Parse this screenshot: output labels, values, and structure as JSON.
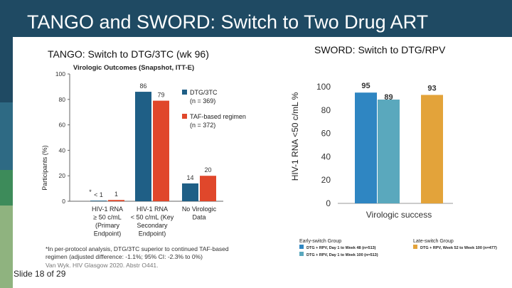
{
  "slide": {
    "title": "TANGO and SWORD: Switch to Two Drug ART",
    "slide_number": "Slide 18 of 29"
  },
  "tango": {
    "panel_title": "TANGO: Switch to DTG/3TC (wk 96)",
    "footnote_line1": "*In per-protocol analysis, DTG/3TC superior to continued TAF-based",
    "footnote_line2": "regimen (adjusted difference: -1.1%; 95% CI: -2.3% to 0%)",
    "citation": "Van Wyk. HIV Glasgow 2020. Abstr O441."
  },
  "sword": {
    "panel_title": "SWORD: Switch to DTG/RPV",
    "legend_group_early": "Early-switch Group",
    "legend_group_late": "Late-switch Group"
  },
  "colors": {
    "title_bar": "#1f4a63",
    "dtg_3tc": "#1f5f86",
    "taf": "#e0472b",
    "sword_early_day1_wk48": "#2f86c2",
    "sword_early_day1_wk100": "#5aa8bd",
    "sword_late": "#e3a33a"
  },
  "chart_data": [
    {
      "type": "bar",
      "title": "Virologic Outcomes (Snapshot, ITT-E)",
      "ylabel": "Participants (%)",
      "ylim": [
        0,
        100
      ],
      "yticks": [
        0,
        20,
        40,
        60,
        80,
        100
      ],
      "categories": [
        [
          "HIV-1 RNA",
          "≥ 50 c/mL",
          "(Primary",
          "Endpoint)"
        ],
        [
          "HIV-1 RNA",
          "< 50 c/mL (Key",
          "Secondary",
          "Endpoint)"
        ],
        [
          "No Virologic",
          "Data"
        ]
      ],
      "series": [
        {
          "name": "DTG/3TC",
          "n": "(n = 369)",
          "values": [
            0.5,
            86,
            14
          ],
          "labels": [
            "< 1",
            "86",
            "14"
          ],
          "color": "#1f5f86"
        },
        {
          "name": "TAF-based regimen",
          "n": "(n = 372)",
          "values": [
            1,
            79,
            20
          ],
          "labels": [
            "1",
            "79",
            "20"
          ],
          "color": "#e0472b"
        }
      ],
      "asterisk": "*",
      "legend_position": "right"
    },
    {
      "type": "bar",
      "xlabel": "Virologic success",
      "ylabel": "HIV-1 RNA <50 c/mL %",
      "ylim": [
        0,
        100
      ],
      "yticks": [
        0,
        20,
        40,
        60,
        80,
        100
      ],
      "series": [
        {
          "name": "DTG + RPV, Day 1 to Week 48 (n=513)",
          "value": 95,
          "label": "95",
          "color": "#2f86c2"
        },
        {
          "name": "DTG + RPV, Day 1 to Week 100 (n=513)",
          "value": 89,
          "label": "89",
          "color": "#5aa8bd"
        },
        {
          "name": "DTG + RPV, Week 52 to Week 100 (n=477)",
          "value": 93,
          "label": "93",
          "color": "#e3a33a"
        }
      ],
      "legend_position": "bottom"
    }
  ]
}
